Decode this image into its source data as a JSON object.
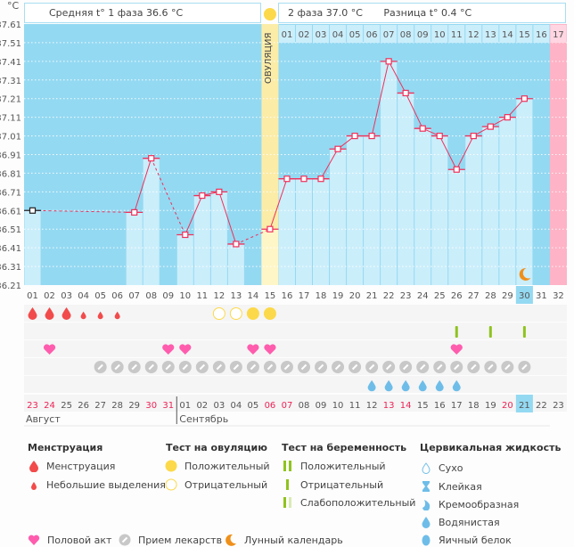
{
  "header": {
    "unit": "°C",
    "phase1": "Средняя t° 1 фаза 36.6 °C",
    "phase2": "2 фаза 37.0 °C",
    "diff": "Разница t° 0.4 °C",
    "ovulation_label": "ОВУЛЯЦИЯ"
  },
  "colors": {
    "chart_bg": "#94d9f2",
    "bar": "#cbeefb",
    "ovulation": "#fbeca8",
    "ovulation_bar": "#fff6c8",
    "next_cycle": "#ffb3c6",
    "line": "#f0305a",
    "menstruation": "#f24b4b",
    "ovu_test": "#fcd94a",
    "preg_test": "#8fc31f",
    "heart": "#ff5cae",
    "pill": "#c8c8c8",
    "fluid": "#6ebde9",
    "moon": "#f0901a",
    "weekend": "#ee2255"
  },
  "chart_data": {
    "type": "line",
    "title": "",
    "xlabel": "",
    "ylabel": "°C",
    "ylim": [
      36.21,
      37.61
    ],
    "yticks": [
      "37.61",
      "37.51",
      "37.41",
      "37.31",
      "37.21",
      "37.11",
      "37.01",
      "36.91",
      "36.81",
      "36.71",
      "36.61",
      "36.51",
      "36.41",
      "36.31",
      "36.21"
    ],
    "grid": true,
    "cycle_days": [
      "01",
      "02",
      "03",
      "04",
      "05",
      "06",
      "07",
      "08",
      "09",
      "10",
      "11",
      "12",
      "13",
      "14",
      "15",
      "16",
      "17",
      "18",
      "19",
      "20",
      "21",
      "22",
      "23",
      "24",
      "25",
      "26",
      "27",
      "28",
      "29",
      "30",
      "31",
      "32"
    ],
    "phase2_days": [
      "01",
      "02",
      "03",
      "04",
      "05",
      "06",
      "07",
      "08",
      "09",
      "10",
      "11",
      "12",
      "13",
      "14",
      "15",
      "16",
      "17"
    ],
    "temperatures": [
      36.61,
      null,
      null,
      null,
      null,
      null,
      36.6,
      36.89,
      null,
      36.48,
      36.69,
      36.71,
      36.43,
      null,
      36.51,
      36.78,
      36.78,
      36.78,
      36.94,
      37.01,
      37.01,
      37.41,
      37.24,
      37.05,
      37.01,
      36.83,
      37.01,
      37.06,
      37.11,
      37.21,
      null,
      null
    ],
    "ovulation_day": 15,
    "next_cycle_day": 32,
    "current_day": 30,
    "dates": [
      "23",
      "24",
      "25",
      "26",
      "27",
      "28",
      "29",
      "30",
      "31",
      "01",
      "02",
      "03",
      "04",
      "05",
      "06",
      "07",
      "08",
      "09",
      "10",
      "11",
      "12",
      "13",
      "14",
      "15",
      "16",
      "17",
      "18",
      "19",
      "20",
      "21",
      "22",
      "23"
    ],
    "weekend_indexes": [
      0,
      1,
      7,
      8,
      14,
      15,
      21,
      22,
      28
    ],
    "months": [
      "Август",
      "Сентябрь"
    ],
    "month_break_index": 9,
    "markers": {
      "menstruation_heavy": [
        1,
        2,
        3
      ],
      "menstruation_light": [
        4,
        5,
        6
      ],
      "ovulation_negative": [
        12,
        13
      ],
      "ovulation_positive": [
        14,
        15
      ],
      "pregnancy_negative": [
        26,
        28,
        30
      ],
      "intercourse": [
        2,
        9,
        10,
        14,
        15,
        26
      ],
      "medication": [
        5,
        6,
        7,
        8,
        9,
        10,
        11,
        12,
        13,
        14,
        15,
        16,
        17,
        18,
        19,
        20,
        21,
        22,
        23,
        24,
        25,
        26,
        27,
        28,
        29,
        30
      ],
      "cervical_watery": [
        21,
        22,
        23,
        24,
        25,
        26
      ],
      "moon": [
        30
      ]
    }
  },
  "legend": {
    "menstruation": {
      "title": "Менструация",
      "items": [
        "Менструация",
        "Небольшие выделения"
      ]
    },
    "ovulation_test": {
      "title": "Тест на овуляцию",
      "items": [
        "Положительный",
        "Отрицательный"
      ]
    },
    "pregnancy_test": {
      "title": "Тест на беременность",
      "items": [
        "Положительный",
        "Отрицательный",
        "Слабоположительный"
      ]
    },
    "cervical": {
      "title": "Цервикальная жидкость",
      "items": [
        "Сухо",
        "Клейкая",
        "Кремообразная",
        "Водянистая",
        "Яичный белок"
      ]
    },
    "other": [
      "Половой акт",
      "Прием лекарств",
      "Лунный календарь"
    ]
  }
}
